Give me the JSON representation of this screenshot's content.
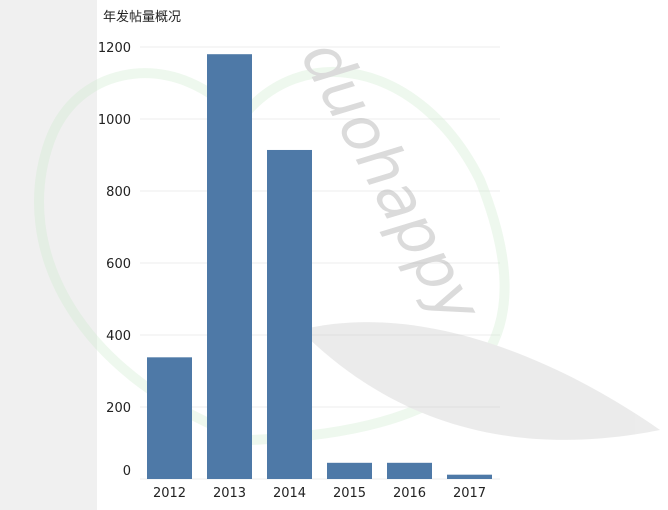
{
  "chart_data": {
    "type": "bar",
    "title": "年发帖量概况",
    "categories": [
      "2012",
      "2013",
      "2014",
      "2015",
      "2016",
      "2017"
    ],
    "values": [
      338,
      1180,
      914,
      45,
      45,
      12
    ],
    "ylim": [
      0,
      1200
    ],
    "yticks": [
      "0",
      "200",
      "400",
      "600",
      "800",
      "1000",
      "1200"
    ],
    "xlabel": "",
    "ylabel": "",
    "grid": true,
    "bar_color": "#4e79a7"
  },
  "watermark": "duohappy"
}
